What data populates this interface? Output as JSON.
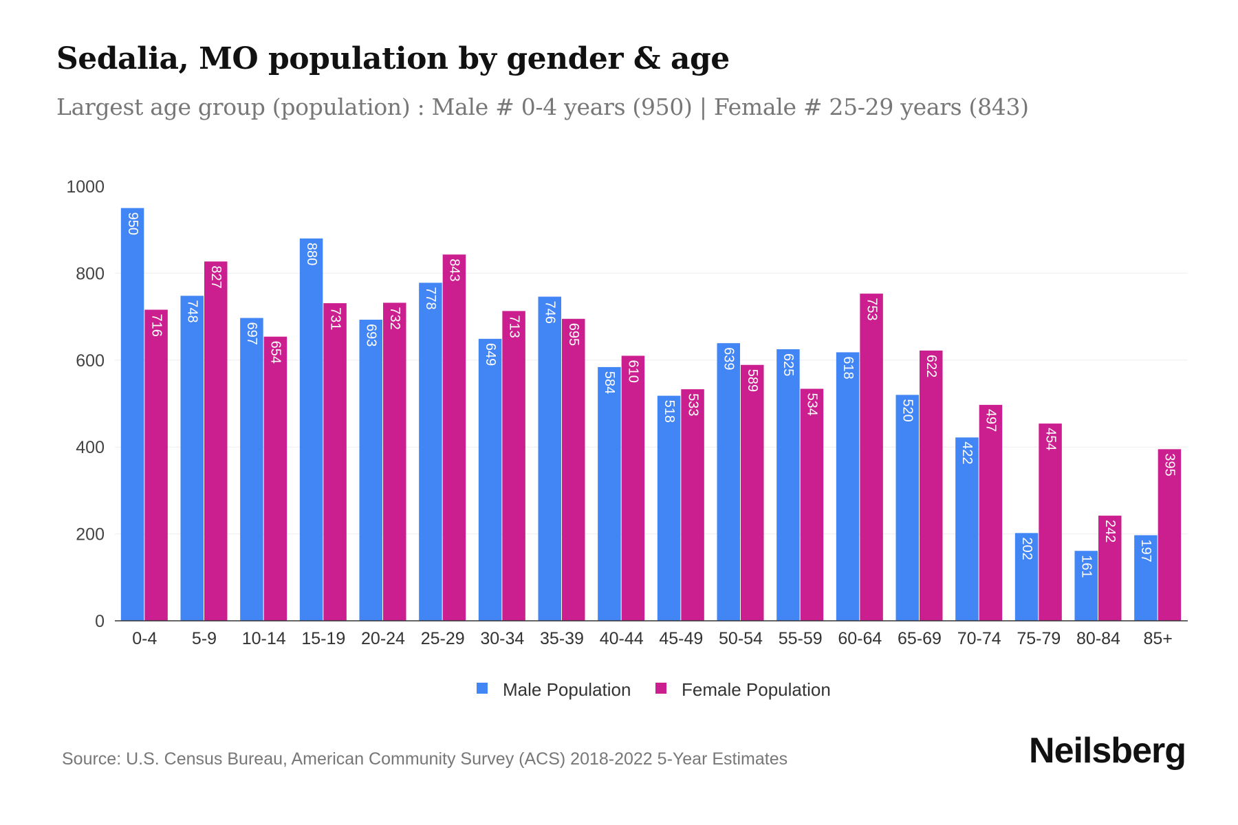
{
  "title": "Sedalia, MO population by gender & age",
  "subtitle": "Largest age group (population) : Male # 0-4 years (950) | Female # 25-29 years (843)",
  "source": "Source: U.S. Census Bureau, American Community Survey (ACS) 2018-2022 5-Year Estimates",
  "logo": "Neilsberg",
  "colors": {
    "male": "#4285f4",
    "female": "#cc1f8f"
  },
  "chart_data": {
    "type": "bar",
    "title": "Sedalia, MO population by gender & age",
    "xlabel": "",
    "ylabel": "",
    "ylim": [
      0,
      1000
    ],
    "yticks": [
      0,
      200,
      400,
      600,
      800,
      1000
    ],
    "grid": true,
    "legend_position": "bottom-center",
    "categories": [
      "0-4",
      "5-9",
      "10-14",
      "15-19",
      "20-24",
      "25-29",
      "30-34",
      "35-39",
      "40-44",
      "45-49",
      "50-54",
      "55-59",
      "60-64",
      "65-69",
      "70-74",
      "75-79",
      "80-84",
      "85+"
    ],
    "series": [
      {
        "name": "Male Population",
        "values": [
          950,
          748,
          697,
          880,
          693,
          778,
          649,
          746,
          584,
          518,
          639,
          625,
          618,
          520,
          422,
          202,
          161,
          197
        ]
      },
      {
        "name": "Female Population",
        "values": [
          716,
          827,
          654,
          731,
          732,
          843,
          713,
          695,
          610,
          533,
          589,
          534,
          753,
          622,
          497,
          454,
          242,
          395
        ]
      }
    ]
  }
}
